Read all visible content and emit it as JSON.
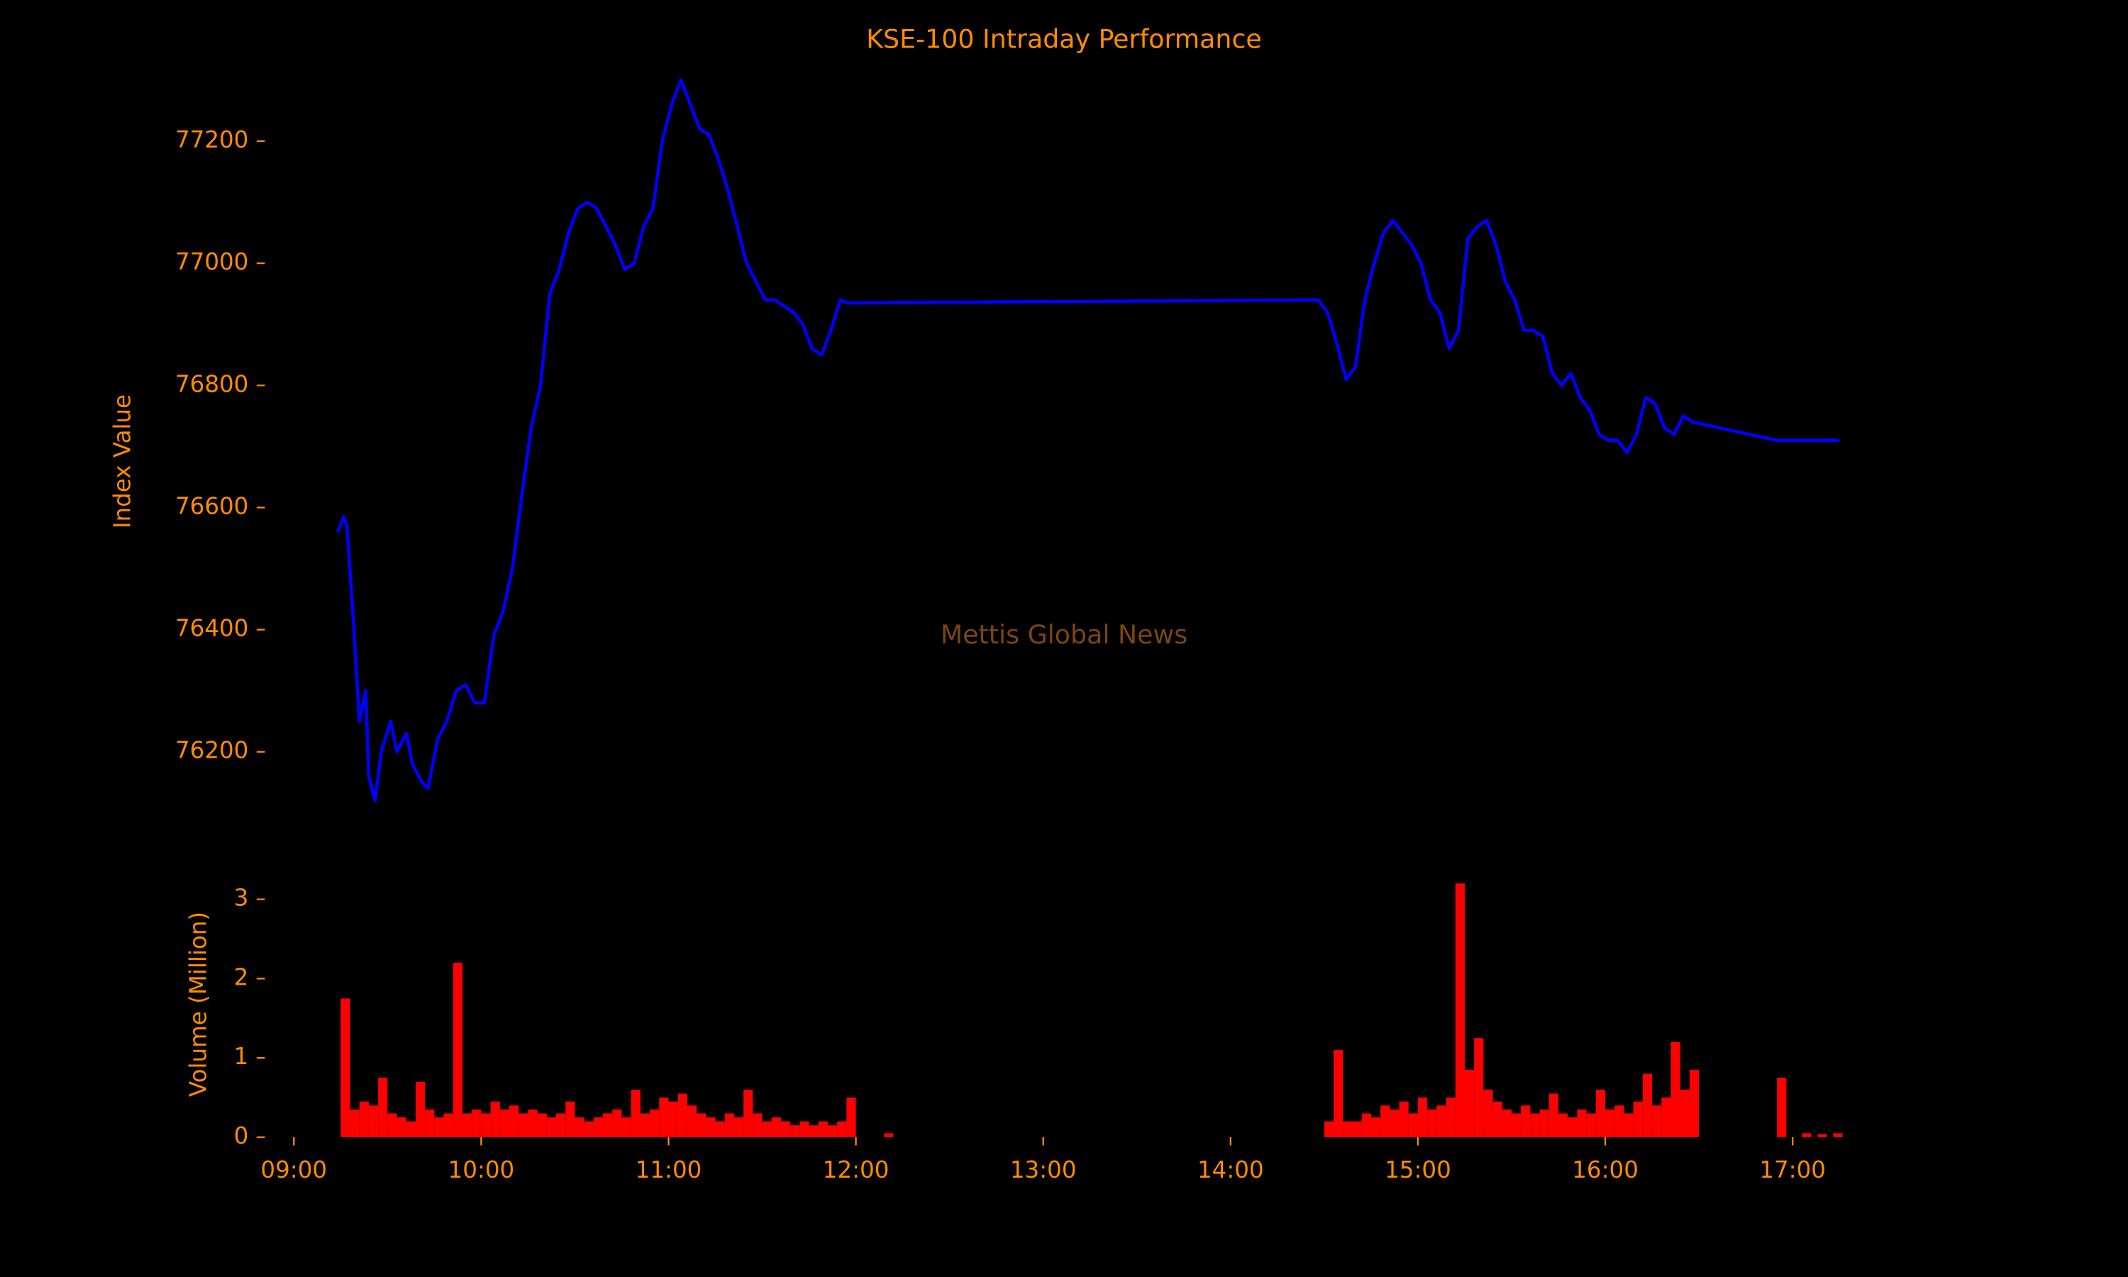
{
  "chart_data": [
    {
      "type": "line",
      "title": "KSE-100 Intraday Performance",
      "ylabel": "Index Value",
      "annotation": "Mettis Global News",
      "color": "#0000ff",
      "x": [
        "09:14",
        "09:16",
        "09:17",
        "09:19",
        "09:21",
        "09:23",
        "09:24",
        "09:26",
        "09:28",
        "09:31",
        "09:33",
        "09:36",
        "09:38",
        "09:41",
        "09:43",
        "09:46",
        "09:49",
        "09:52",
        "09:55",
        "09:58",
        "10:01",
        "10:04",
        "10:07",
        "10:10",
        "10:13",
        "10:16",
        "10:19",
        "10:22",
        "10:25",
        "10:28",
        "10:31",
        "10:34",
        "10:37",
        "10:40",
        "10:43",
        "10:46",
        "10:49",
        "10:52",
        "10:55",
        "10:58",
        "11:01",
        "11:04",
        "11:07",
        "11:10",
        "11:13",
        "11:16",
        "11:19",
        "11:22",
        "11:25",
        "11:28",
        "11:31",
        "11:34",
        "11:37",
        "11:40",
        "11:43",
        "11:46",
        "11:49",
        "11:52",
        "11:55",
        "11:57",
        "14:28",
        "14:31",
        "14:34",
        "14:37",
        "14:40",
        "14:43",
        "14:46",
        "14:49",
        "14:52",
        "14:55",
        "14:58",
        "15:01",
        "15:04",
        "15:07",
        "15:10",
        "15:13",
        "15:16",
        "15:19",
        "15:22",
        "15:25",
        "15:28",
        "15:31",
        "15:34",
        "15:37",
        "15:40",
        "15:43",
        "15:46",
        "15:49",
        "15:52",
        "15:55",
        "15:58",
        "16:01",
        "16:04",
        "16:07",
        "16:10",
        "16:13",
        "16:16",
        "16:19",
        "16:22",
        "16:25",
        "16:28",
        "16:55",
        "17:15"
      ],
      "values": [
        76560,
        76585,
        76570,
        76420,
        76250,
        76300,
        76160,
        76120,
        76200,
        76250,
        76200,
        76230,
        76180,
        76150,
        76140,
        76220,
        76250,
        76300,
        76310,
        76280,
        76280,
        76390,
        76430,
        76500,
        76620,
        76730,
        76800,
        76950,
        76990,
        77050,
        77090,
        77100,
        77090,
        77060,
        77030,
        76990,
        77000,
        77060,
        77090,
        77200,
        77260,
        77300,
        77260,
        77220,
        77210,
        77170,
        77120,
        77060,
        77000,
        76970,
        76940,
        76940,
        76930,
        76920,
        76900,
        76860,
        76850,
        76890,
        76940,
        76935,
        76940,
        76920,
        76870,
        76810,
        76830,
        76940,
        77000,
        77050,
        77070,
        77050,
        77030,
        77000,
        76940,
        76920,
        76860,
        76890,
        77040,
        77060,
        77070,
        77030,
        76970,
        76940,
        76890,
        76890,
        76880,
        76820,
        76800,
        76820,
        76780,
        76760,
        76720,
        76710,
        76710,
        76690,
        76720,
        76780,
        76770,
        76730,
        76720,
        76750,
        76740,
        76710,
        76710
      ],
      "xlim": [
        "08:52",
        "17:20"
      ],
      "ylim": [
        76080,
        77320
      ],
      "yticks": [
        76200,
        76400,
        76600,
        76800,
        77000,
        77200
      ]
    },
    {
      "type": "bar",
      "ylabel": "Volume (Million)",
      "color": "#ff0000",
      "x": [
        "09:15",
        "09:18",
        "09:21",
        "09:24",
        "09:27",
        "09:30",
        "09:33",
        "09:36",
        "09:39",
        "09:42",
        "09:45",
        "09:48",
        "09:51",
        "09:54",
        "09:57",
        "10:00",
        "10:03",
        "10:06",
        "10:09",
        "10:12",
        "10:15",
        "10:18",
        "10:21",
        "10:24",
        "10:27",
        "10:30",
        "10:33",
        "10:36",
        "10:39",
        "10:42",
        "10:45",
        "10:48",
        "10:51",
        "10:54",
        "10:57",
        "11:00",
        "11:03",
        "11:06",
        "11:09",
        "11:12",
        "11:15",
        "11:18",
        "11:21",
        "11:24",
        "11:27",
        "11:30",
        "11:33",
        "11:36",
        "11:39",
        "11:42",
        "11:45",
        "11:48",
        "11:51",
        "11:54",
        "11:57",
        "12:09",
        "14:30",
        "14:33",
        "14:36",
        "14:39",
        "14:42",
        "14:45",
        "14:48",
        "14:51",
        "14:54",
        "14:57",
        "15:00",
        "15:03",
        "15:06",
        "15:09",
        "15:12",
        "15:15",
        "15:18",
        "15:21",
        "15:24",
        "15:27",
        "15:30",
        "15:33",
        "15:36",
        "15:39",
        "15:42",
        "15:45",
        "15:48",
        "15:51",
        "15:54",
        "15:57",
        "16:00",
        "16:03",
        "16:06",
        "16:09",
        "16:12",
        "16:15",
        "16:18",
        "16:21",
        "16:24",
        "16:27",
        "16:55",
        "17:03",
        "17:08",
        "17:13"
      ],
      "values": [
        1.75,
        0.35,
        0.45,
        0.4,
        0.75,
        0.3,
        0.25,
        0.2,
        0.7,
        0.35,
        0.25,
        0.3,
        2.2,
        0.3,
        0.35,
        0.3,
        0.45,
        0.35,
        0.4,
        0.3,
        0.35,
        0.3,
        0.25,
        0.3,
        0.45,
        0.25,
        0.2,
        0.25,
        0.3,
        0.35,
        0.25,
        0.6,
        0.3,
        0.35,
        0.5,
        0.45,
        0.55,
        0.4,
        0.3,
        0.25,
        0.2,
        0.3,
        0.25,
        0.6,
        0.3,
        0.2,
        0.25,
        0.2,
        0.15,
        0.2,
        0.15,
        0.2,
        0.15,
        0.2,
        0.5,
        0.05,
        0.2,
        1.1,
        0.2,
        0.2,
        0.3,
        0.25,
        0.4,
        0.35,
        0.45,
        0.3,
        0.5,
        0.35,
        0.4,
        0.5,
        3.2,
        0.85,
        1.25,
        0.6,
        0.45,
        0.35,
        0.3,
        0.4,
        0.3,
        0.35,
        0.55,
        0.3,
        0.25,
        0.35,
        0.3,
        0.6,
        0.35,
        0.4,
        0.3,
        0.45,
        0.8,
        0.4,
        0.5,
        1.2,
        0.6,
        0.85,
        0.75,
        0.05,
        0.04,
        0.05
      ],
      "xlim": [
        "08:52",
        "17:20"
      ],
      "ylim": [
        0,
        3.2
      ],
      "yticks": [
        0,
        1,
        2,
        3
      ],
      "xticks": [
        "09:00",
        "10:00",
        "11:00",
        "12:00",
        "13:00",
        "14:00",
        "15:00",
        "16:00",
        "17:00"
      ]
    }
  ]
}
